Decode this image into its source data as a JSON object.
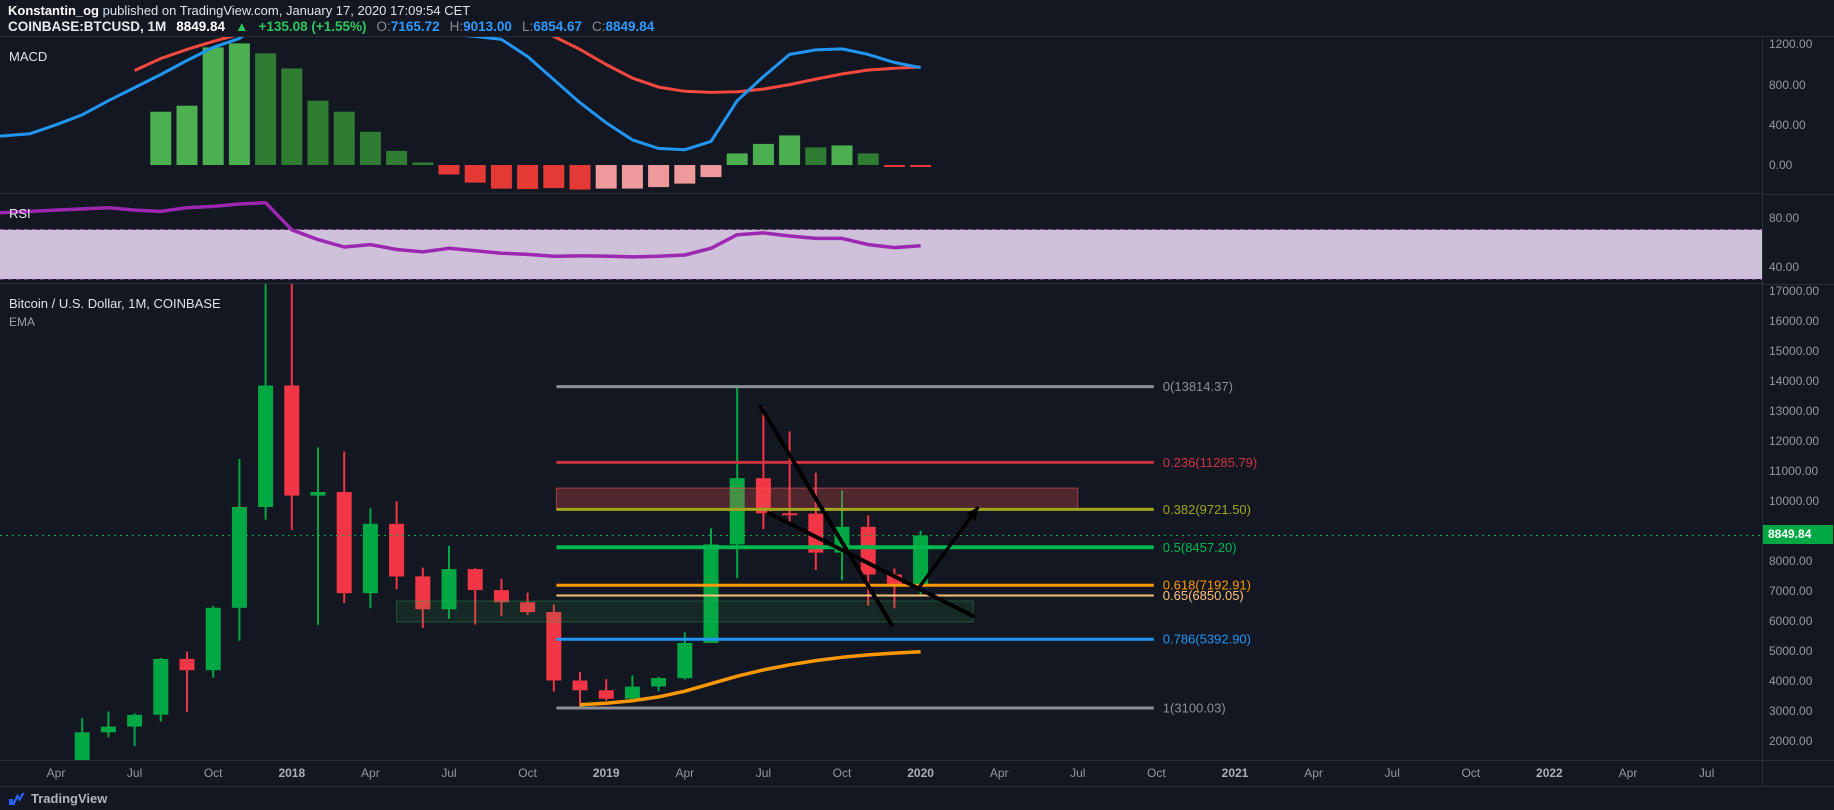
{
  "header": {
    "author": "Konstantin_og",
    "published_text": "published on TradingView.com, January 17, 2020 17:09:54 CET",
    "symbol": "COINBASE:BTCUSD, 1M",
    "last_price": "8849.84",
    "change_arrow": "▲",
    "change_text": "+135.08 (+1.55%)",
    "ohlc": [
      {
        "label": "O:",
        "value": "7165.72"
      },
      {
        "label": "H:",
        "value": "9013.00"
      },
      {
        "label": "L:",
        "value": "6854.67"
      },
      {
        "label": "C:",
        "value": "8849.84"
      }
    ]
  },
  "panels": {
    "macd": {
      "label": "MACD",
      "axis_labels": [
        "1200.00",
        "800.00",
        "400.00",
        "0.00"
      ]
    },
    "rsi": {
      "label": "RSI",
      "axis_labels": [
        "80.00",
        "40.00"
      ]
    },
    "main": {
      "title": "Bitcoin / U.S. Dollar, 1M, COINBASE",
      "indicator": "EMA",
      "axis_labels": [
        "17000.00",
        "16000.00",
        "15000.00",
        "14000.00",
        "13000.00",
        "12000.00",
        "11000.00",
        "10000.00",
        "9000.00",
        "8000.00",
        "7000.00",
        "6000.00",
        "5000.00",
        "4000.00",
        "3000.00",
        "2000.00"
      ],
      "price_badge": "8849.84"
    }
  },
  "time_axis": {
    "labels": [
      "Apr",
      "Jul",
      "Oct",
      "2018",
      "Apr",
      "Jul",
      "Oct",
      "2019",
      "Apr",
      "Jul",
      "Oct",
      "2020",
      "Apr",
      "Jul",
      "Oct",
      "2021",
      "Apr",
      "Jul",
      "Oct",
      "2022",
      "Apr",
      "Jul"
    ],
    "months_per_label": 3,
    "start": "2017-04"
  },
  "footer": {
    "brand": "TradingView"
  },
  "colors": {
    "bg": "#131722",
    "grid": "#2a2e39",
    "up": "#00a843",
    "down": "#f23645",
    "macd_line": "#2196f3",
    "signal_line": "#f5483f",
    "rsi_line": "#9c27b0",
    "rsi_band_fill": "rgba(233,218,244,0.88)",
    "rsi_band_edge": "rgba(213,134,222,0.85)",
    "ema": "#ff9800",
    "trend": "#000000",
    "price_line": "#00a843"
  },
  "chart_data": [
    {
      "type": "candlestick",
      "title": "Bitcoin / U.S. Dollar, 1M, COINBASE",
      "timeframe": "1M",
      "start_month": "2017-04",
      "ylim": [
        1333,
        17233
      ],
      "candles": [
        [
          1080,
          1360,
          1060,
          1350
        ],
        [
          1350,
          2760,
          1340,
          2290
        ],
        [
          2290,
          2980,
          2120,
          2480
        ],
        [
          2480,
          2920,
          1830,
          2875
        ],
        [
          2875,
          4765,
          2650,
          4735
        ],
        [
          4735,
          4980,
          2970,
          4360
        ],
        [
          4360,
          6500,
          4110,
          6440
        ],
        [
          6440,
          11400,
          5340,
          9800
        ],
        [
          9800,
          19891,
          9380,
          13850
        ],
        [
          13850,
          17234,
          9035,
          10180
        ],
        [
          10180,
          11786,
          5873,
          10301
        ],
        [
          10301,
          11650,
          6600,
          6926
        ],
        [
          6926,
          9760,
          6425,
          9240
        ],
        [
          9240,
          9990,
          7055,
          7485
        ],
        [
          7485,
          7780,
          5770,
          6390
        ],
        [
          6390,
          8500,
          6070,
          7730
        ],
        [
          7730,
          7760,
          5880,
          7030
        ],
        [
          7030,
          7410,
          6160,
          6625
        ],
        [
          6625,
          6945,
          6200,
          6300
        ],
        [
          6300,
          6540,
          3650,
          4017
        ],
        [
          4017,
          4300,
          3100,
          3690
        ],
        [
          3690,
          4060,
          3350,
          3410
        ],
        [
          3410,
          4190,
          3330,
          3815
        ],
        [
          3815,
          4140,
          3655,
          4095
        ],
        [
          4095,
          5620,
          4050,
          5270
        ],
        [
          5270,
          9090,
          5270,
          8555
        ],
        [
          8555,
          13814,
          7430,
          10760
        ],
        [
          10760,
          13130,
          9060,
          9590
        ],
        [
          9590,
          12320,
          9310,
          9580
        ],
        [
          9580,
          10940,
          7700,
          8280
        ],
        [
          8280,
          10350,
          7355,
          9140
        ],
        [
          9140,
          9520,
          6515,
          7550
        ],
        [
          7550,
          7750,
          6425,
          7165.72
        ],
        [
          7165.72,
          9013,
          6854.67,
          8849.84
        ]
      ],
      "ema": [
        [
          20,
          3210
        ],
        [
          21,
          3260
        ],
        [
          22,
          3340
        ],
        [
          23,
          3470
        ],
        [
          24,
          3660
        ],
        [
          25,
          3910
        ],
        [
          26,
          4160
        ],
        [
          27,
          4370
        ],
        [
          28,
          4540
        ],
        [
          29,
          4680
        ],
        [
          30,
          4790
        ],
        [
          31,
          4870
        ],
        [
          32,
          4930
        ],
        [
          33,
          4975
        ]
      ],
      "fib_levels": [
        {
          "label": "0(13814.37)",
          "value": 13814.37,
          "color": "#8b8f99",
          "width": 3
        },
        {
          "label": "0.236(11285.79)",
          "value": 11285.79,
          "color": "#cc3440",
          "width": 3
        },
        {
          "label": "0.382(9721.50)",
          "value": 9721.5,
          "color": "#a3a51c",
          "width": 3
        },
        {
          "label": "0.5(8457.20)",
          "value": 8457.2,
          "color": "#00b74f",
          "width": 4
        },
        {
          "label": "0.618(7192.91)",
          "value": 7192.91,
          "color": "#ff9800",
          "width": 3
        },
        {
          "label": "0.65(6850.05)",
          "value": 6850.05,
          "color": "#ffc078",
          "width": 2
        },
        {
          "label": "0.786(5392.90)",
          "value": 5392.9,
          "color": "#2196f3",
          "width": 3
        },
        {
          "label": "1(3100.03)",
          "value": 3100.03,
          "color": "#8b8f99",
          "width": 3
        }
      ],
      "fib_month_range": [
        19.1,
        41.9
      ],
      "zones": [
        {
          "name": "supply-zone",
          "price_from": 9721.5,
          "price_to": 10430,
          "month_from": 19.1,
          "month_to": 39.0,
          "fill": "rgba(239,83,80,0.28)",
          "border": "rgba(239,83,80,0.6)"
        },
        {
          "name": "demand-zone",
          "price_from": 5967,
          "price_to": 6667,
          "month_from": 13.0,
          "month_to": 35.0,
          "fill": "rgba(46,174,82,0.12)",
          "border": "rgba(46,174,82,0.4)"
        }
      ],
      "trend_lines": [
        {
          "from": [
            26.9,
            13133
          ],
          "to": [
            31.9,
            5867
          ]
        },
        {
          "from": [
            27.2,
            9600
          ],
          "to": [
            35.0,
            6167
          ]
        }
      ],
      "arrow": {
        "from": [
          32.9,
          7067
        ],
        "to": [
          35.2,
          9800
        ]
      },
      "last_price": 8849.84
    },
    {
      "type": "macd",
      "ylim": [
        -288,
        1272
      ],
      "hist_colors": {
        "ga": "#4caf50",
        "fa": "#2e7d32",
        "fb": "#e53935",
        "gb": "#ef9a9a"
      },
      "hist": [
        [
          4,
          530,
          "ga"
        ],
        [
          5,
          590,
          "ga"
        ],
        [
          6,
          1170,
          "ga"
        ],
        [
          7,
          1210,
          "ga"
        ],
        [
          8,
          1110,
          "fa"
        ],
        [
          9,
          960,
          "fa"
        ],
        [
          10,
          640,
          "fa"
        ],
        [
          11,
          530,
          "fa"
        ],
        [
          12,
          330,
          "fa"
        ],
        [
          13,
          140,
          "fa"
        ],
        [
          14,
          25,
          "fa"
        ],
        [
          15,
          -95,
          "fb"
        ],
        [
          16,
          -175,
          "fb"
        ],
        [
          17,
          -235,
          "fb"
        ],
        [
          18,
          -240,
          "fb"
        ],
        [
          19,
          -230,
          "fb"
        ],
        [
          20,
          -245,
          "fb"
        ],
        [
          21,
          -235,
          "gb"
        ],
        [
          22,
          -235,
          "gb"
        ],
        [
          23,
          -220,
          "gb"
        ],
        [
          24,
          -185,
          "gb"
        ],
        [
          25,
          -120,
          "gb"
        ],
        [
          26,
          115,
          "ga"
        ],
        [
          27,
          210,
          "ga"
        ],
        [
          28,
          295,
          "ga"
        ],
        [
          29,
          175,
          "fa"
        ],
        [
          30,
          195,
          "ga"
        ],
        [
          31,
          115,
          "fa"
        ],
        [
          32,
          -15,
          "fb"
        ],
        [
          33,
          -20,
          "fb"
        ]
      ],
      "macd_line": [
        [
          -3,
          280
        ],
        [
          -2,
          290
        ],
        [
          -1,
          310
        ],
        [
          0,
          400
        ],
        [
          1,
          500
        ],
        [
          2,
          640
        ],
        [
          3,
          770
        ],
        [
          4,
          900
        ],
        [
          5,
          1040
        ],
        [
          6,
          1170
        ],
        [
          7,
          1260
        ],
        [
          8,
          1450
        ],
        [
          9,
          1600
        ],
        [
          10,
          1650
        ],
        [
          11,
          1620
        ],
        [
          12,
          1540
        ],
        [
          13,
          1450
        ],
        [
          14,
          1370
        ],
        [
          15,
          1300
        ],
        [
          16,
          1280
        ],
        [
          17,
          1250
        ],
        [
          18,
          1080
        ],
        [
          19,
          850
        ],
        [
          20,
          620
        ],
        [
          21,
          420
        ],
        [
          22,
          250
        ],
        [
          23,
          165
        ],
        [
          24,
          152
        ],
        [
          25,
          235
        ],
        [
          26,
          640
        ],
        [
          27,
          880
        ],
        [
          28,
          1100
        ],
        [
          29,
          1145
        ],
        [
          30,
          1155
        ],
        [
          31,
          1100
        ],
        [
          32,
          1020
        ],
        [
          33,
          968
        ]
      ],
      "signal_line": [
        [
          3,
          940
        ],
        [
          4,
          1060
        ],
        [
          5,
          1150
        ],
        [
          6,
          1230
        ],
        [
          7,
          1300
        ],
        [
          8,
          1420
        ],
        [
          9,
          1560
        ],
        [
          10,
          1700
        ],
        [
          11,
          1750
        ],
        [
          12,
          1740
        ],
        [
          13,
          1700
        ],
        [
          14,
          1650
        ],
        [
          15,
          1600
        ],
        [
          16,
          1540
        ],
        [
          17,
          1480
        ],
        [
          18,
          1390
        ],
        [
          19,
          1280
        ],
        [
          20,
          1150
        ],
        [
          21,
          1000
        ],
        [
          22,
          865
        ],
        [
          23,
          775
        ],
        [
          24,
          733
        ],
        [
          25,
          722
        ],
        [
          26,
          728
        ],
        [
          27,
          755
        ],
        [
          28,
          800
        ],
        [
          29,
          855
        ],
        [
          30,
          905
        ],
        [
          31,
          945
        ],
        [
          32,
          962
        ],
        [
          33,
          975
        ]
      ]
    },
    {
      "type": "rsi",
      "band": [
        30,
        70
      ],
      "values": [
        [
          -3,
          83
        ],
        [
          -2,
          84
        ],
        [
          -1,
          85
        ],
        [
          0,
          86
        ],
        [
          1,
          87
        ],
        [
          2,
          88
        ],
        [
          3,
          86
        ],
        [
          4,
          85
        ],
        [
          5,
          88
        ],
        [
          6,
          89
        ],
        [
          7,
          91
        ],
        [
          8,
          92
        ],
        [
          9,
          70
        ],
        [
          10,
          62
        ],
        [
          11,
          56
        ],
        [
          12,
          58
        ],
        [
          13,
          54
        ],
        [
          14,
          52
        ],
        [
          15,
          55
        ],
        [
          16,
          53
        ],
        [
          17,
          51
        ],
        [
          18,
          50
        ],
        [
          19,
          48.5
        ],
        [
          20,
          48.8
        ],
        [
          21,
          48.6
        ],
        [
          22,
          48
        ],
        [
          23,
          48.5
        ],
        [
          24,
          49.5
        ],
        [
          25,
          55
        ],
        [
          26,
          66
        ],
        [
          27,
          67.5
        ],
        [
          28,
          65
        ],
        [
          29,
          63
        ],
        [
          30,
          63
        ],
        [
          31,
          58
        ],
        [
          32,
          55.5
        ],
        [
          33,
          57
        ]
      ]
    }
  ]
}
